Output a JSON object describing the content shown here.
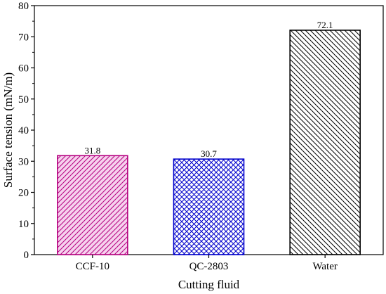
{
  "chart_data": {
    "type": "bar",
    "title": "",
    "xlabel": "Cutting fluid",
    "ylabel": "Surface tension (mN/m)",
    "categories": [
      "CCF-10",
      "QC-2803",
      "Water"
    ],
    "values": [
      31.8,
      30.7,
      72.1
    ],
    "value_labels": [
      "31.8",
      "30.7",
      "72.1"
    ],
    "ylim": [
      0,
      80
    ],
    "yticks": [
      "0",
      "10",
      "20",
      "30",
      "40",
      "50",
      "60",
      "70",
      "80"
    ],
    "grid": false,
    "legend": "none",
    "bar_styles": [
      {
        "color": "#b5007f",
        "fill": "#f6d2ee",
        "pattern": "diagonal-forward"
      },
      {
        "color": "#0000cc",
        "fill": "#ffffff",
        "pattern": "crosshatch"
      },
      {
        "color": "#000000",
        "fill": "#ffffff",
        "pattern": "diagonal-backward"
      }
    ]
  }
}
